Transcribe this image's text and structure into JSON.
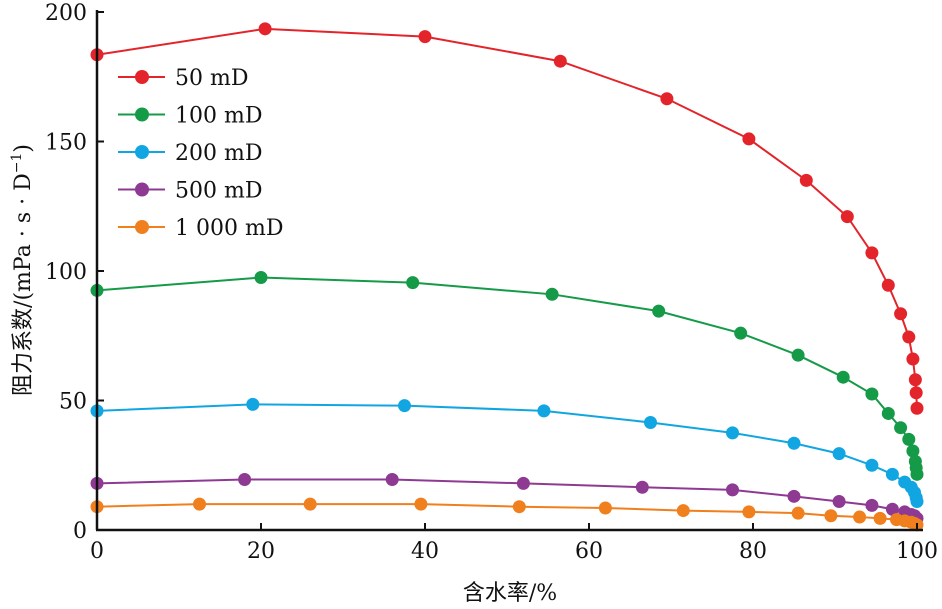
{
  "chart_data": {
    "type": "line",
    "title": "",
    "xlabel": "含水率/%",
    "ylabel": "阻力系数/(mPa · s · D",
    "ylabel_sup": "−1",
    "ylabel_tail": ")",
    "xlim": [
      0,
      100
    ],
    "ylim": [
      0,
      200
    ],
    "x_ticks": [
      0,
      20,
      40,
      60,
      80,
      100
    ],
    "y_ticks": [
      0,
      50,
      100,
      150,
      200
    ],
    "x_tick_labels": [
      "0",
      "20",
      "40",
      "60",
      "80",
      "100"
    ],
    "y_tick_labels": [
      "0",
      "50",
      "100",
      "150",
      "200"
    ],
    "grid": false,
    "legend_position": "top-left",
    "series": [
      {
        "name": "50 mD",
        "color": "#e3242b",
        "points": [
          [
            0,
            183.5
          ],
          [
            20.5,
            193.5
          ],
          [
            40,
            190.5
          ],
          [
            56.5,
            181
          ],
          [
            69.5,
            166.5
          ],
          [
            79.5,
            151
          ],
          [
            86.5,
            135
          ],
          [
            91.5,
            121
          ],
          [
            94.5,
            107
          ],
          [
            96.5,
            94.5
          ],
          [
            98,
            83.5
          ],
          [
            99,
            74.5
          ],
          [
            99.5,
            66
          ],
          [
            99.8,
            58
          ],
          [
            99.9,
            53
          ],
          [
            100,
            47
          ]
        ]
      },
      {
        "name": "100 mD",
        "color": "#159a48",
        "points": [
          [
            0,
            92.5
          ],
          [
            20,
            97.5
          ],
          [
            38.5,
            95.5
          ],
          [
            55.5,
            91
          ],
          [
            68.5,
            84.5
          ],
          [
            78.5,
            76
          ],
          [
            85.5,
            67.5
          ],
          [
            91,
            59
          ],
          [
            94.5,
            52.5
          ],
          [
            96.5,
            45
          ],
          [
            98,
            39.5
          ],
          [
            99,
            35
          ],
          [
            99.5,
            30.5
          ],
          [
            99.8,
            26.5
          ],
          [
            99.9,
            24
          ],
          [
            100,
            21.5
          ]
        ]
      },
      {
        "name": "200 mD",
        "color": "#11a6e1",
        "points": [
          [
            0,
            46
          ],
          [
            19,
            48.5
          ],
          [
            37.5,
            48
          ],
          [
            54.5,
            46
          ],
          [
            67.5,
            41.5
          ],
          [
            77.5,
            37.5
          ],
          [
            85,
            33.5
          ],
          [
            90.5,
            29.5
          ],
          [
            94.5,
            25
          ],
          [
            97,
            21.5
          ],
          [
            98.5,
            18.5
          ],
          [
            99.3,
            16.5
          ],
          [
            99.7,
            14.5
          ],
          [
            99.9,
            12.5
          ],
          [
            100,
            11
          ]
        ]
      },
      {
        "name": "500 mD",
        "color": "#8e3a92",
        "points": [
          [
            0,
            18
          ],
          [
            18,
            19.5
          ],
          [
            36,
            19.5
          ],
          [
            52,
            18
          ],
          [
            66.5,
            16.5
          ],
          [
            77.5,
            15.5
          ],
          [
            85,
            13
          ],
          [
            90.5,
            11
          ],
          [
            94.5,
            9.5
          ],
          [
            97,
            8
          ],
          [
            98.5,
            7
          ],
          [
            99.3,
            6
          ],
          [
            99.7,
            5.5
          ],
          [
            100,
            4.5
          ]
        ]
      },
      {
        "name": "1 000 mD",
        "color": "#f07f1e",
        "points": [
          [
            0,
            9
          ],
          [
            12.5,
            10
          ],
          [
            26,
            10
          ],
          [
            39.5,
            10
          ],
          [
            51.5,
            9
          ],
          [
            62,
            8.5
          ],
          [
            71.5,
            7.5
          ],
          [
            79.5,
            7
          ],
          [
            85.5,
            6.5
          ],
          [
            89.5,
            5.5
          ],
          [
            93,
            5
          ],
          [
            95.5,
            4.5
          ],
          [
            97.5,
            4
          ],
          [
            98.5,
            3.5
          ],
          [
            99.3,
            3
          ],
          [
            99.7,
            2.5
          ],
          [
            100,
            2
          ]
        ]
      }
    ]
  }
}
